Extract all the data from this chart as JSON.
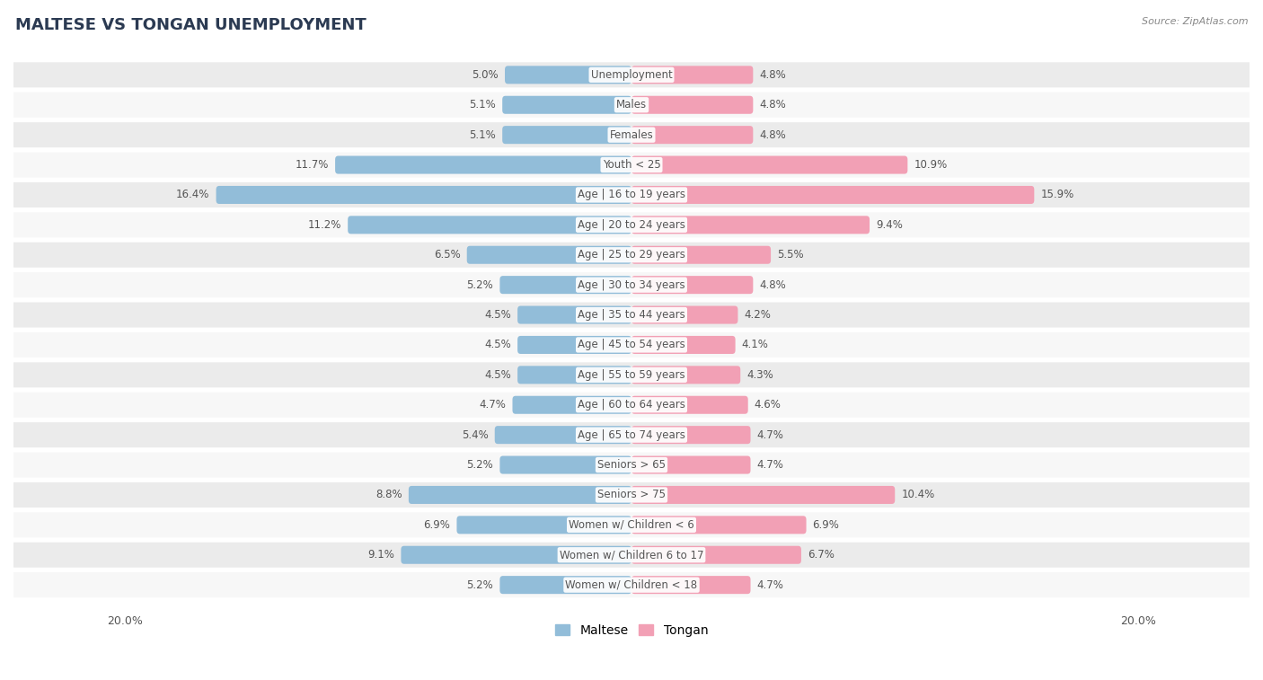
{
  "title": "MALTESE VS TONGAN UNEMPLOYMENT",
  "source": "Source: ZipAtlas.com",
  "categories": [
    "Unemployment",
    "Males",
    "Females",
    "Youth < 25",
    "Age | 16 to 19 years",
    "Age | 20 to 24 years",
    "Age | 25 to 29 years",
    "Age | 30 to 34 years",
    "Age | 35 to 44 years",
    "Age | 45 to 54 years",
    "Age | 55 to 59 years",
    "Age | 60 to 64 years",
    "Age | 65 to 74 years",
    "Seniors > 65",
    "Seniors > 75",
    "Women w/ Children < 6",
    "Women w/ Children 6 to 17",
    "Women w/ Children < 18"
  ],
  "maltese": [
    5.0,
    5.1,
    5.1,
    11.7,
    16.4,
    11.2,
    6.5,
    5.2,
    4.5,
    4.5,
    4.5,
    4.7,
    5.4,
    5.2,
    8.8,
    6.9,
    9.1,
    5.2
  ],
  "tongan": [
    4.8,
    4.8,
    4.8,
    10.9,
    15.9,
    9.4,
    5.5,
    4.8,
    4.2,
    4.1,
    4.3,
    4.6,
    4.7,
    4.7,
    10.4,
    6.9,
    6.7,
    4.7
  ],
  "maltese_color": "#92bdd9",
  "tongan_color": "#f2a0b5",
  "xlim": 20.0,
  "fig_bg": "#ffffff",
  "row_bg_even": "#ebebeb",
  "row_bg_odd": "#f7f7f7",
  "title_fontsize": 13,
  "label_fontsize": 8.5,
  "tick_fontsize": 9,
  "legend_fontsize": 10,
  "value_label_color": "#555555",
  "cat_label_color": "#555555"
}
